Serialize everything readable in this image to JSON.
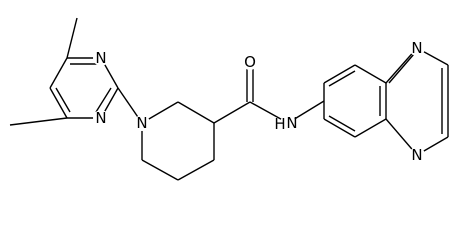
{
  "atoms": [
    {
      "label": "N"
    },
    {
      "label": "N"
    },
    {
      "label": "N"
    },
    {
      "label": "O"
    },
    {
      "label": "N"
    },
    {
      "label": "H"
    },
    {
      "label": "N"
    },
    {
      "label": "N"
    }
  ]
}
